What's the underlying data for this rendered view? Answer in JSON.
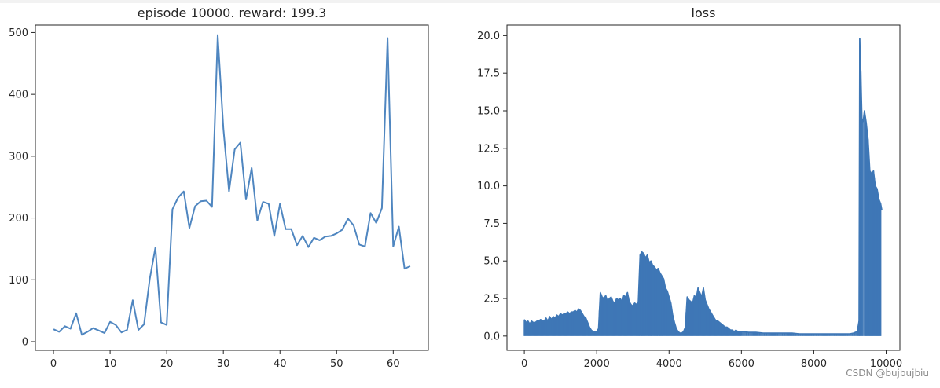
{
  "chart_data": [
    {
      "type": "line",
      "title": "episode 10000. reward: 199.3",
      "xlabel": "",
      "ylabel": "",
      "xlim": [
        -3.2,
        66.2
      ],
      "ylim": [
        -14,
        512
      ],
      "xticks": [
        0,
        10,
        20,
        30,
        40,
        50,
        60
      ],
      "yticks": [
        0,
        100,
        200,
        300,
        400,
        500
      ],
      "grid": false,
      "color": "#4f86c0",
      "series": [
        {
          "x": [
            0,
            1,
            2,
            3,
            4,
            5,
            6,
            7,
            8,
            9,
            10,
            11,
            12,
            13,
            14,
            15,
            16,
            17,
            18,
            19,
            20,
            21,
            22,
            23,
            24,
            25,
            26,
            27,
            28,
            29,
            30,
            31,
            32,
            33,
            34,
            35,
            36,
            37,
            38,
            39,
            40,
            41,
            42,
            43,
            44,
            45,
            46,
            47,
            48,
            49,
            50,
            51,
            52,
            53,
            54,
            55,
            56,
            57,
            58,
            59,
            60,
            61,
            62,
            63
          ],
          "y": [
            20,
            16,
            25,
            21,
            46,
            11,
            16,
            22,
            18,
            14,
            32,
            27,
            15,
            19,
            67,
            19,
            28,
            101,
            152,
            31,
            27,
            214,
            233,
            243,
            184,
            219,
            227,
            228,
            218,
            496,
            345,
            243,
            311,
            322,
            230,
            281,
            196,
            226,
            223,
            171,
            223,
            182,
            182,
            156,
            171,
            153,
            168,
            164,
            170,
            171,
            175,
            181,
            199,
            188,
            157,
            154,
            208,
            192,
            216,
            491,
            154,
            186,
            118,
            122
          ]
        }
      ]
    },
    {
      "type": "line",
      "title": "loss",
      "xlabel": "",
      "ylabel": "",
      "xlim": [
        -480,
        10380
      ],
      "ylim": [
        -0.95,
        20.7
      ],
      "xticks": [
        0,
        2000,
        4000,
        6000,
        8000,
        10000
      ],
      "yticks": [
        "0.0",
        "2.5",
        "5.0",
        "7.5",
        "10.0",
        "12.5",
        "15.0",
        "17.5",
        "20.0"
      ],
      "grid": false,
      "color": "#3e77b6",
      "series": [
        {
          "x": [
            0,
            50,
            100,
            150,
            200,
            250,
            300,
            350,
            400,
            450,
            500,
            550,
            600,
            650,
            700,
            750,
            800,
            850,
            900,
            950,
            1000,
            1050,
            1100,
            1150,
            1200,
            1250,
            1300,
            1350,
            1400,
            1450,
            1500,
            1550,
            1600,
            1650,
            1700,
            1750,
            1800,
            1850,
            1900,
            1950,
            2000,
            2050,
            2100,
            2150,
            2200,
            2250,
            2300,
            2350,
            2400,
            2450,
            2500,
            2550,
            2600,
            2650,
            2700,
            2750,
            2800,
            2850,
            2900,
            2950,
            3000,
            3050,
            3100,
            3150,
            3200,
            3250,
            3300,
            3350,
            3400,
            3450,
            3500,
            3550,
            3600,
            3650,
            3700,
            3750,
            3800,
            3850,
            3900,
            3950,
            4000,
            4050,
            4100,
            4150,
            4200,
            4250,
            4300,
            4350,
            4400,
            4450,
            4500,
            4550,
            4600,
            4650,
            4700,
            4750,
            4800,
            4850,
            4900,
            4950,
            5000,
            5050,
            5100,
            5150,
            5200,
            5250,
            5300,
            5350,
            5400,
            5450,
            5500,
            5550,
            5600,
            5650,
            5700,
            5750,
            5800,
            5850,
            5900,
            5950,
            6000,
            6200,
            6400,
            6600,
            6800,
            7000,
            7200,
            7400,
            7600,
            7800,
            8000,
            8200,
            8400,
            8600,
            8800,
            9000,
            9100,
            9200,
            9250,
            9270,
            9300,
            9330,
            9360,
            9400,
            9450,
            9500,
            9550,
            9600,
            9650,
            9700,
            9750,
            9800,
            9850,
            9880
          ],
          "y": [
            1.1,
            0.9,
            1.0,
            0.8,
            1.0,
            0.9,
            0.9,
            1.0,
            1.0,
            1.1,
            1.0,
            1.0,
            1.2,
            1.0,
            1.3,
            1.1,
            1.3,
            1.2,
            1.4,
            1.3,
            1.5,
            1.4,
            1.5,
            1.5,
            1.6,
            1.5,
            1.6,
            1.6,
            1.7,
            1.6,
            1.8,
            1.7,
            1.5,
            1.3,
            1.2,
            0.9,
            0.6,
            0.4,
            0.3,
            0.3,
            0.3,
            0.5,
            2.9,
            2.6,
            2.5,
            2.7,
            2.3,
            2.5,
            2.6,
            2.3,
            2.2,
            2.5,
            2.4,
            2.5,
            2.3,
            2.7,
            2.6,
            2.9,
            2.3,
            2.1,
            2.0,
            2.2,
            2.1,
            2.3,
            5.4,
            5.6,
            5.5,
            5.2,
            5.4,
            4.9,
            5.0,
            4.7,
            4.6,
            4.4,
            4.5,
            4.2,
            4.0,
            3.8,
            3.2,
            3.0,
            2.6,
            2.2,
            1.4,
            0.9,
            0.5,
            0.3,
            0.2,
            0.2,
            0.3,
            0.6,
            2.6,
            2.4,
            2.3,
            2.2,
            2.7,
            2.5,
            3.2,
            2.9,
            2.6,
            3.2,
            2.4,
            2.1,
            1.8,
            1.6,
            1.4,
            1.2,
            1.0,
            1.0,
            0.9,
            0.8,
            0.7,
            0.6,
            0.6,
            0.5,
            0.4,
            0.4,
            0.3,
            0.4,
            0.3,
            0.3,
            0.3,
            0.25,
            0.25,
            0.2,
            0.2,
            0.2,
            0.2,
            0.2,
            0.15,
            0.15,
            0.15,
            0.15,
            0.15,
            0.15,
            0.15,
            0.15,
            0.2,
            0.3,
            1.0,
            19.8,
            17.6,
            14.5,
            14.2,
            15.0,
            14.2,
            13.1,
            11.0,
            10.8,
            11.0,
            10.0,
            9.8,
            9.1,
            8.8,
            8.4
          ]
        }
      ]
    }
  ],
  "watermark": "CSDN @bujbujbiu"
}
